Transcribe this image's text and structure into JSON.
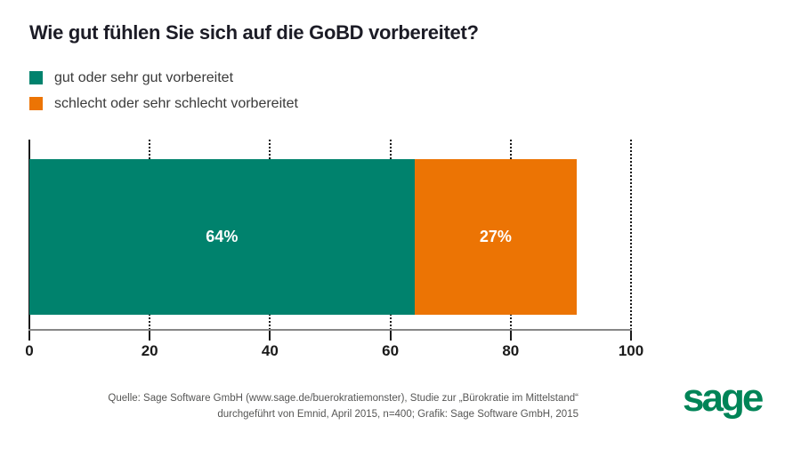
{
  "title": "Wie gut fühlen Sie sich auf die GoBD vorbereitet?",
  "legend": [
    {
      "label": "gut oder sehr gut vorbereitet",
      "color": "#00826D"
    },
    {
      "label": "schlecht oder sehr schlecht vorbereitet",
      "color": "#EC7404"
    }
  ],
  "chart_data": {
    "type": "bar",
    "orientation": "horizontal-stacked",
    "title": "Wie gut fühlen Sie sich auf die GoBD vorbereitet?",
    "series": [
      {
        "name": "gut oder sehr gut vorbereitet",
        "value": 64,
        "label": "64%",
        "color": "#00826D"
      },
      {
        "name": "schlecht oder sehr schlecht vorbereitet",
        "value": 27,
        "label": "27%",
        "color": "#EC7404"
      }
    ],
    "xlim": [
      0,
      100
    ],
    "xticks": [
      0,
      20,
      40,
      60,
      80,
      100
    ],
    "grid": "dotted-vertical",
    "legend_position": "top-left"
  },
  "footer": {
    "line1": "Quelle: Sage Software GmbH (www.sage.de/buerokratiemonster), Studie zur „Bürokratie im Mittelstand“",
    "line2": "durchgeführt von Emnid, April 2015, n=400; Grafik: Sage Software GmbH, 2015"
  },
  "logo": {
    "text": "sage",
    "color": "#008457"
  },
  "colors": {
    "title_text": "#1c1c26",
    "legend_text": "#3a3a3a",
    "axis_line": "#878787",
    "grid": "#1a1a1a",
    "footer_text": "#565655",
    "background": "#ffffff"
  }
}
